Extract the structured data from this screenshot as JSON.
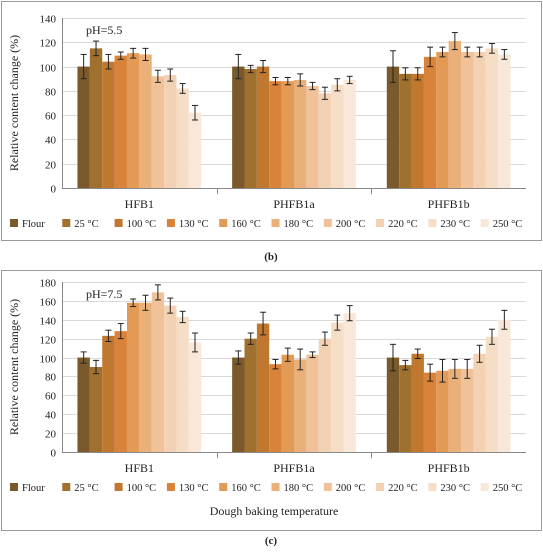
{
  "colors": [
    "#7a5a2b",
    "#a0702f",
    "#c0782f",
    "#d9833a",
    "#e39a55",
    "#eab07a",
    "#efc29a",
    "#f3d2b4",
    "#f6ddc6",
    "#f9e8d9"
  ],
  "chart_data": [
    {
      "type": "bar",
      "panel_label": "(b)",
      "annotation": "pH=5.5",
      "ylabel": "Relative content change (%)",
      "xlabel": "",
      "ylim": [
        0,
        140
      ],
      "yticks": [
        0,
        20,
        40,
        60,
        80,
        100,
        120,
        140
      ],
      "categories": [
        "HFB1",
        "PHFB1a",
        "PHFB1b"
      ],
      "series": [
        {
          "name": "Flour",
          "values": [
            100,
            100,
            100
          ],
          "errors": [
            10,
            10,
            13
          ]
        },
        {
          "name": "25 °C",
          "values": [
            115,
            98,
            94
          ],
          "errors": [
            6,
            3,
            5
          ]
        },
        {
          "name": "100 °C",
          "values": [
            104,
            100,
            94
          ],
          "errors": [
            6,
            5,
            5
          ]
        },
        {
          "name": "130 °C",
          "values": [
            109,
            88,
            108
          ],
          "errors": [
            3,
            3,
            8
          ]
        },
        {
          "name": "160 °C",
          "values": [
            111,
            88,
            112
          ],
          "errors": [
            4,
            3,
            4
          ]
        },
        {
          "name": "180 °C",
          "values": [
            110,
            89,
            121
          ],
          "errors": [
            5,
            5,
            7
          ]
        },
        {
          "name": "200 °C",
          "values": [
            92,
            84,
            112
          ],
          "errors": [
            5,
            3,
            4
          ]
        },
        {
          "name": "220 °C",
          "values": [
            93,
            78,
            112
          ],
          "errors": [
            5,
            5,
            4
          ]
        },
        {
          "name": "230 °C",
          "values": [
            82,
            85,
            115
          ],
          "errors": [
            4,
            5,
            4
          ]
        },
        {
          "name": "250 °C",
          "values": [
            62,
            89,
            110
          ],
          "errors": [
            6,
            3,
            4
          ]
        }
      ]
    },
    {
      "type": "bar",
      "panel_label": "(c)",
      "annotation": "pH=7.5",
      "ylabel": "Relative content change (%)",
      "xlabel": "Dough baking temperature",
      "ylim": [
        0,
        180
      ],
      "yticks": [
        0,
        20,
        40,
        60,
        80,
        100,
        120,
        140,
        160,
        180
      ],
      "categories": [
        "HFB1",
        "PHFB1a",
        "PHFB1b"
      ],
      "series": [
        {
          "name": "Flour",
          "values": [
            100,
            100,
            100
          ],
          "errors": [
            6,
            7,
            14
          ]
        },
        {
          "name": "25 °C",
          "values": [
            90,
            120,
            92
          ],
          "errors": [
            7,
            6,
            5
          ]
        },
        {
          "name": "100 °C",
          "values": [
            123,
            136,
            104
          ],
          "errors": [
            6,
            12,
            5
          ]
        },
        {
          "name": "130 °C",
          "values": [
            128,
            93,
            84
          ],
          "errors": [
            8,
            5,
            9
          ]
        },
        {
          "name": "160 °C",
          "values": [
            158,
            103,
            86
          ],
          "errors": [
            4,
            7,
            12
          ]
        },
        {
          "name": "180 °C",
          "values": [
            158,
            98,
            88
          ],
          "errors": [
            8,
            11,
            10
          ]
        },
        {
          "name": "200 °C",
          "values": [
            169,
            103,
            88
          ],
          "errors": [
            8,
            3,
            10
          ]
        },
        {
          "name": "220 °C",
          "values": [
            155,
            120,
            104
          ],
          "errors": [
            8,
            7,
            9
          ]
        },
        {
          "name": "230 °C",
          "values": [
            143,
            137,
            122
          ],
          "errors": [
            6,
            8,
            8
          ]
        },
        {
          "name": "250 °C",
          "values": [
            116,
            147,
            140
          ],
          "errors": [
            10,
            8,
            10
          ]
        }
      ]
    }
  ]
}
